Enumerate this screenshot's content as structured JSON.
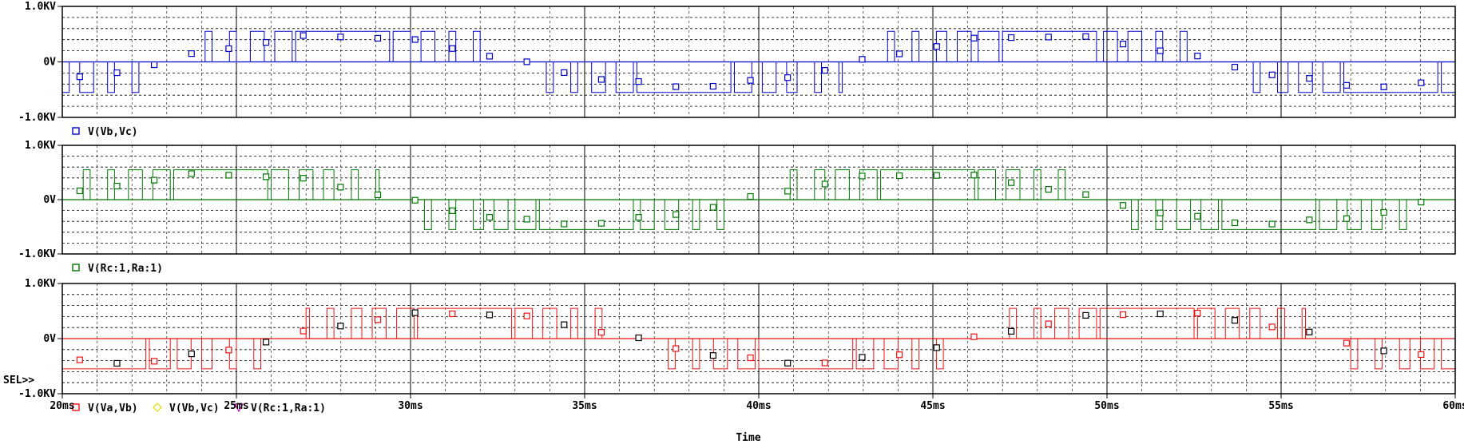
{
  "window": {
    "title": ""
  },
  "colors": {
    "blue": "#0000cc",
    "green": "#007700",
    "red": "#ee1111",
    "yellow": "#dddd00",
    "magenta": "#cc00cc",
    "grid": "#000000",
    "axis": "#000000"
  },
  "x_axis": {
    "label": "Time",
    "ticks": [
      "20ms",
      "25ms",
      "30ms",
      "35ms",
      "40ms",
      "45ms",
      "50ms",
      "55ms",
      "60ms"
    ]
  },
  "select_label": "SEL>>",
  "plots": [
    {
      "id": "plot1",
      "y_ticks": [
        "1.0KV",
        "0V",
        "-1.0KV"
      ],
      "legend": [
        {
          "marker": "square",
          "color": "#0000cc",
          "label": "V(Vb,Vc)"
        }
      ]
    },
    {
      "id": "plot2",
      "y_ticks": [
        "1.0KV",
        "0V",
        "-1.0KV"
      ],
      "legend": [
        {
          "marker": "square",
          "color": "#007700",
          "label": "V(Rc:1,Ra:1)"
        }
      ]
    },
    {
      "id": "plot3",
      "y_ticks": [
        "1.0KV",
        "0V",
        "-1.0KV"
      ],
      "legend": [
        {
          "marker": "square",
          "color": "#ee1111",
          "label": "V(Va,Vb)"
        },
        {
          "marker": "diamond",
          "color": "#dddd00",
          "label": "V(Vb,Vc)"
        },
        {
          "marker": "triangle",
          "color": "#cc00cc",
          "label": "V(Rc:1,Ra:1)"
        }
      ]
    }
  ],
  "chart_data": [
    {
      "type": "line",
      "xlabel": "Time",
      "x_unit": "ms",
      "xlim": [
        20,
        60
      ],
      "ylim": [
        -1.0,
        1.0
      ],
      "y_unit": "KV",
      "grid": true,
      "legend_position": "bottom-left",
      "series": [
        {
          "name": "V(Vb,Vc)",
          "color": "#0000cc",
          "waveform": "three-level PWM (±0.55 KV)",
          "fundamental_period_ms": 20,
          "zero_phase_ms": 23.0
        }
      ]
    },
    {
      "type": "line",
      "xlabel": "Time",
      "x_unit": "ms",
      "xlim": [
        20,
        60
      ],
      "ylim": [
        -1.0,
        1.0
      ],
      "y_unit": "KV",
      "grid": true,
      "legend_position": "bottom-left",
      "series": [
        {
          "name": "V(Rc:1,Ra:1)",
          "color": "#007700",
          "waveform": "three-level PWM (±0.55 KV)",
          "fundamental_period_ms": 20,
          "zero_phase_ms": 19.7
        }
      ]
    },
    {
      "type": "line",
      "xlabel": "Time",
      "x_unit": "ms",
      "xlim": [
        20,
        60
      ],
      "ylim": [
        -1.0,
        1.0
      ],
      "y_unit": "KV",
      "grid": true,
      "legend_position": "bottom-left",
      "series": [
        {
          "name": "V(Va,Vb)",
          "color": "#ee1111",
          "waveform": "three-level PWM (±0.55 KV)",
          "fundamental_period_ms": 20,
          "zero_phase_ms": 26.3
        },
        {
          "name": "V(Vb,Vc)",
          "color": "#dddd00"
        },
        {
          "name": "V(Rc:1,Ra:1)",
          "color": "#cc00cc"
        }
      ]
    }
  ]
}
